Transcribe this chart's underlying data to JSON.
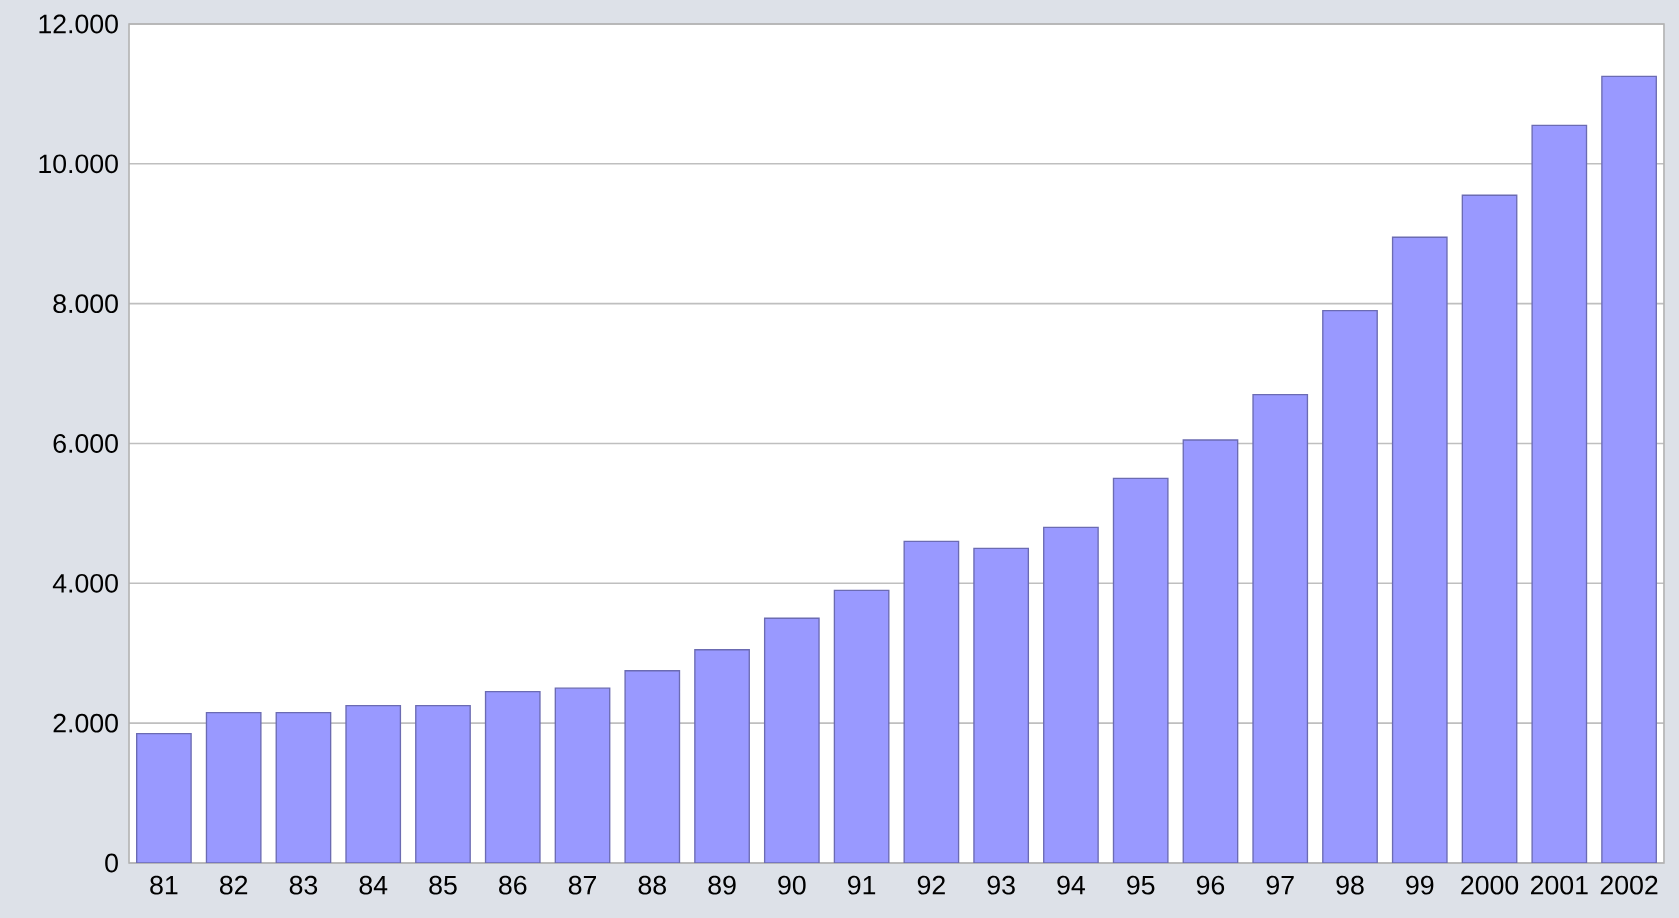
{
  "chart_data": {
    "type": "bar",
    "categories": [
      "81",
      "82",
      "83",
      "84",
      "85",
      "86",
      "87",
      "88",
      "89",
      "90",
      "91",
      "92",
      "93",
      "94",
      "95",
      "96",
      "97",
      "98",
      "99",
      "2000",
      "2001",
      "2002"
    ],
    "values": [
      1850,
      2150,
      2150,
      2250,
      2250,
      2450,
      2500,
      2750,
      3050,
      3500,
      3900,
      4600,
      4500,
      4800,
      5500,
      6050,
      6700,
      7900,
      8950,
      9550,
      10550,
      11250
    ],
    "color": "#9999ff",
    "ylim": [
      0,
      12000
    ],
    "yticks": [
      0,
      {
        "value": 2000,
        "label": "2.000"
      },
      {
        "value": 4000,
        "label": "4.000"
      },
      {
        "value": 6000,
        "label": "6.000"
      },
      {
        "value": 8000,
        "label": "8.000"
      },
      {
        "value": 10000,
        "label": "10.000"
      },
      {
        "value": 12000,
        "label": "12.000"
      }
    ],
    "grid": "y"
  }
}
